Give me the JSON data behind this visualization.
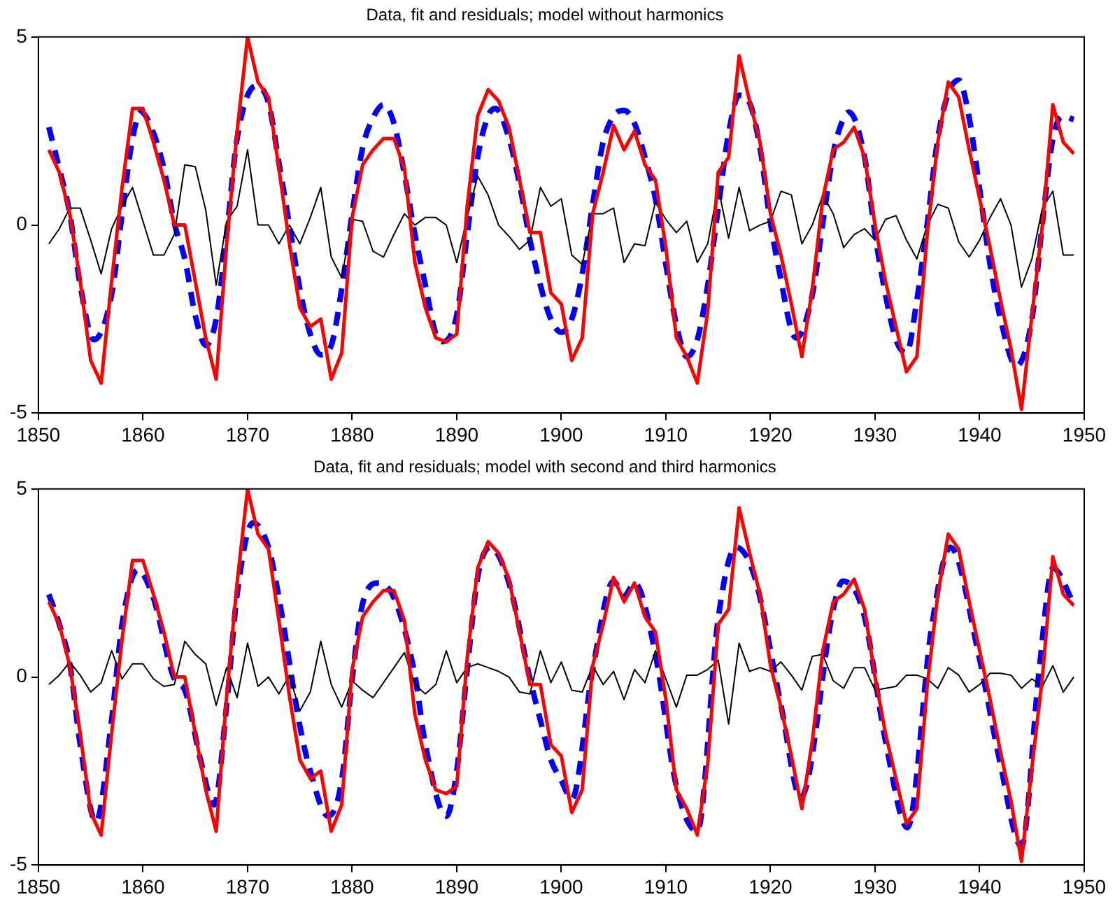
{
  "chart_data": [
    {
      "type": "line",
      "title": "Data, fit and residuals; model without harmonics",
      "xlim": [
        1850,
        1950
      ],
      "xticks": [
        1850,
        1860,
        1870,
        1880,
        1890,
        1900,
        1910,
        1920,
        1930,
        1940,
        1950
      ],
      "ylim": [
        -5,
        5
      ],
      "yticks": [
        -5,
        0,
        5
      ],
      "grid": false,
      "legend": false,
      "marker": "none",
      "x": [
        1851,
        1852,
        1853,
        1854,
        1855,
        1856,
        1857,
        1858,
        1859,
        1860,
        1861,
        1862,
        1863,
        1864,
        1865,
        1866,
        1867,
        1868,
        1869,
        1870,
        1871,
        1872,
        1873,
        1874,
        1875,
        1876,
        1877,
        1878,
        1879,
        1880,
        1881,
        1882,
        1883,
        1884,
        1885,
        1886,
        1887,
        1888,
        1889,
        1890,
        1891,
        1892,
        1893,
        1894,
        1895,
        1896,
        1897,
        1898,
        1899,
        1900,
        1901,
        1902,
        1903,
        1904,
        1905,
        1906,
        1907,
        1908,
        1909,
        1910,
        1911,
        1912,
        1913,
        1914,
        1915,
        1916,
        1917,
        1918,
        1919,
        1920,
        1921,
        1922,
        1923,
        1924,
        1925,
        1926,
        1927,
        1928,
        1929,
        1930,
        1931,
        1932,
        1933,
        1934,
        1935,
        1936,
        1937,
        1938,
        1939,
        1940,
        1941,
        1942,
        1943,
        1944,
        1945,
        1946,
        1947,
        1948,
        1949
      ],
      "series": [
        {
          "type": "line",
          "color": "#ff0000",
          "line_style": "solid",
          "values": [
            2.0,
            1.4,
            0.3,
            -1.5,
            -3.6,
            -4.2,
            -1.5,
            1.0,
            3.1,
            3.1,
            2.2,
            1.2,
            0.0,
            0.0,
            -1.5,
            -3.0,
            -4.1,
            -0.5,
            2.5,
            5.0,
            3.8,
            3.4,
            1.5,
            -0.5,
            -2.2,
            -2.7,
            -2.5,
            -4.1,
            -3.4,
            0.2,
            1.6,
            2.0,
            2.3,
            2.3,
            1.5,
            -1.0,
            -2.2,
            -3.0,
            -3.1,
            -2.9,
            0.5,
            2.9,
            3.6,
            3.3,
            2.6,
            1.2,
            -0.2,
            -0.2,
            -1.8,
            -2.1,
            -3.6,
            -3.0,
            0.3,
            1.4,
            2.65,
            2.0,
            2.5,
            1.6,
            1.2,
            -0.6,
            -3.0,
            -3.5,
            -4.2,
            -2.3,
            1.4,
            1.8,
            4.5,
            3.3,
            2.2,
            0.3,
            -0.8,
            -2.1,
            -3.5,
            -1.7,
            0.7,
            2.0,
            2.2,
            2.6,
            1.8,
            0.0,
            -1.5,
            -2.7,
            -3.9,
            -3.5,
            -0.2,
            2.2,
            3.8,
            3.4,
            2.0,
            0.7,
            -0.6,
            -2.0,
            -3.3,
            -4.9,
            -2.4,
            0.0,
            3.2,
            2.2,
            1.9
          ]
        },
        {
          "type": "line",
          "color": "#0000ff",
          "line_style": "dashed",
          "x": [
            1851,
            1852,
            1853,
            1854,
            1855.3,
            1857,
            1858,
            1859,
            1859.8,
            1861,
            1862,
            1863,
            1864,
            1865,
            1866,
            1867,
            1868,
            1869,
            1870.8,
            1872,
            1873,
            1874,
            1875,
            1876,
            1877,
            1878,
            1879,
            1880,
            1881,
            1882,
            1883,
            1884,
            1885,
            1886,
            1887,
            1888,
            1888.7,
            1890,
            1891,
            1892,
            1893,
            1893.7,
            1895,
            1896,
            1897,
            1898,
            1899,
            1900,
            1901,
            1902,
            1903,
            1904,
            1905,
            1906,
            1907,
            1908,
            1909,
            1910,
            1911,
            1912,
            1913,
            1914,
            1915,
            1916,
            1917,
            1918,
            1919,
            1920,
            1921,
            1922,
            1922.5,
            1924,
            1925,
            1926,
            1927,
            1927.5,
            1929,
            1930,
            1931,
            1932,
            1933,
            1934,
            1935,
            1936,
            1937,
            1938,
            1939,
            1940,
            1941,
            1942,
            1943.5,
            1945,
            1946,
            1947,
            1948,
            1949
          ],
          "values": [
            2.6,
            1.5,
            0.3,
            -1.6,
            -3.05,
            -1.85,
            0.3,
            2.3,
            3.0,
            2.45,
            1.5,
            0.05,
            -0.9,
            -2.4,
            -3.2,
            -2.5,
            -0.25,
            2.3,
            3.7,
            3.25,
            1.65,
            0.0,
            -1.7,
            -2.9,
            -3.45,
            -3.2,
            -1.7,
            0.3,
            2.05,
            2.85,
            3.2,
            2.7,
            1.35,
            -0.25,
            -1.6,
            -2.9,
            -3.1,
            -2.4,
            -0.25,
            1.8,
            2.9,
            3.1,
            2.3,
            1.1,
            -0.4,
            -1.6,
            -2.5,
            -2.85,
            -2.5,
            -1.3,
            0.55,
            2.2,
            2.9,
            3.05,
            2.7,
            1.8,
            0.7,
            -1.05,
            -2.65,
            -3.5,
            -3.05,
            -1.6,
            0.45,
            2.45,
            3.45,
            3.25,
            2.05,
            0.05,
            -1.45,
            -2.8,
            -3.0,
            -1.85,
            0.05,
            1.9,
            2.85,
            3.0,
            1.8,
            -0.25,
            -1.85,
            -3.05,
            -3.4,
            -2.0,
            0.05,
            2.3,
            3.5,
            3.85,
            2.85,
            0.95,
            -1.05,
            -2.5,
            -3.75,
            -2.5,
            0.05,
            2.3,
            2.9,
            2.8
          ]
        },
        {
          "type": "line",
          "color": "#000000",
          "line_style": "solid",
          "values": [
            -0.5,
            -0.1,
            0.45,
            0.45,
            -0.4,
            -1.3,
            -0.1,
            0.5,
            1.0,
            0.1,
            -0.8,
            -0.8,
            -0.25,
            1.6,
            1.55,
            0.4,
            -1.6,
            0.1,
            0.5,
            2.0,
            0.0,
            0.0,
            -0.5,
            0.0,
            -0.5,
            0.2,
            1.0,
            -0.85,
            -1.4,
            0.15,
            0.1,
            -0.7,
            -0.85,
            -0.25,
            0.3,
            0.0,
            0.2,
            0.2,
            0.0,
            -1.0,
            0.2,
            1.3,
            0.8,
            0.0,
            -0.3,
            -0.65,
            -0.4,
            1.0,
            0.5,
            0.7,
            -0.8,
            -1.05,
            0.3,
            0.3,
            0.45,
            -1.0,
            -0.5,
            -0.55,
            0.6,
            0.15,
            -0.2,
            0.1,
            -1.0,
            -0.5,
            1.0,
            -0.35,
            1.0,
            -0.15,
            0.0,
            0.1,
            0.9,
            0.8,
            -0.5,
            0.0,
            0.8,
            0.3,
            -0.6,
            -0.25,
            -0.1,
            -0.4,
            0.15,
            0.25,
            -0.4,
            -0.9,
            0.0,
            0.55,
            0.45,
            -0.45,
            -0.85,
            -0.4,
            0.2,
            0.7,
            0.0,
            -1.65,
            -0.9,
            0.45,
            0.9,
            -0.8,
            -0.8
          ]
        }
      ]
    },
    {
      "type": "line",
      "title": "Data, fit and residuals; model with second and third harmonics",
      "xlim": [
        1850,
        1950
      ],
      "xticks": [
        1850,
        1860,
        1870,
        1880,
        1890,
        1900,
        1910,
        1920,
        1930,
        1940,
        1950
      ],
      "ylim": [
        -5,
        5
      ],
      "yticks": [
        -5,
        0,
        5
      ],
      "grid": false,
      "legend": false,
      "marker": "none",
      "x": [
        1851,
        1852,
        1853,
        1854,
        1855,
        1856,
        1857,
        1858,
        1859,
        1860,
        1861,
        1862,
        1863,
        1864,
        1865,
        1866,
        1867,
        1868,
        1869,
        1870,
        1871,
        1872,
        1873,
        1874,
        1875,
        1876,
        1877,
        1878,
        1879,
        1880,
        1881,
        1882,
        1883,
        1884,
        1885,
        1886,
        1887,
        1888,
        1889,
        1890,
        1891,
        1892,
        1893,
        1894,
        1895,
        1896,
        1897,
        1898,
        1899,
        1900,
        1901,
        1902,
        1903,
        1904,
        1905,
        1906,
        1907,
        1908,
        1909,
        1910,
        1911,
        1912,
        1913,
        1914,
        1915,
        1916,
        1917,
        1918,
        1919,
        1920,
        1921,
        1922,
        1923,
        1924,
        1925,
        1926,
        1927,
        1928,
        1929,
        1930,
        1931,
        1932,
        1933,
        1934,
        1935,
        1936,
        1937,
        1938,
        1939,
        1940,
        1941,
        1942,
        1943,
        1944,
        1945,
        1946,
        1947,
        1948,
        1949
      ],
      "series": [
        {
          "type": "line",
          "color": "#ff0000",
          "line_style": "solid",
          "values": [
            2.0,
            1.4,
            0.3,
            -1.5,
            -3.6,
            -4.2,
            -1.5,
            1.0,
            3.1,
            3.1,
            2.2,
            1.2,
            0.0,
            0.0,
            -1.5,
            -3.0,
            -4.1,
            -0.5,
            2.5,
            5.0,
            3.8,
            3.4,
            1.5,
            -0.5,
            -2.2,
            -2.7,
            -2.5,
            -4.1,
            -3.4,
            0.2,
            1.6,
            2.0,
            2.3,
            2.3,
            1.5,
            -1.0,
            -2.2,
            -3.0,
            -3.1,
            -2.9,
            0.5,
            2.9,
            3.6,
            3.3,
            2.6,
            1.2,
            -0.2,
            -0.2,
            -1.8,
            -2.1,
            -3.6,
            -3.0,
            0.3,
            1.4,
            2.65,
            2.0,
            2.5,
            1.6,
            1.2,
            -0.6,
            -3.0,
            -3.5,
            -4.2,
            -2.3,
            1.4,
            1.8,
            4.5,
            3.3,
            2.2,
            0.3,
            -0.8,
            -2.1,
            -3.5,
            -1.7,
            0.7,
            2.0,
            2.2,
            2.6,
            1.8,
            0.0,
            -1.5,
            -2.7,
            -3.9,
            -3.5,
            -0.2,
            2.2,
            3.8,
            3.4,
            2.0,
            0.7,
            -0.6,
            -2.0,
            -3.3,
            -4.9,
            -2.4,
            0.0,
            3.2,
            2.2,
            1.9
          ]
        },
        {
          "type": "line",
          "color": "#0000ff",
          "line_style": "dashed",
          "x": [
            1851,
            1852,
            1853,
            1854,
            1855.5,
            1857,
            1858,
            1859.5,
            1861,
            1863,
            1864,
            1865.5,
            1866.8,
            1868,
            1869,
            1870.5,
            1872,
            1873,
            1875,
            1876,
            1877.7,
            1879,
            1880,
            1881,
            1882.5,
            1884,
            1886,
            1887,
            1889,
            1890,
            1891,
            1892,
            1893.2,
            1895,
            1897,
            1898,
            1899,
            1900,
            1901,
            1903,
            1905,
            1906,
            1907,
            1909,
            1911,
            1913,
            1915,
            1916.7,
            1918.5,
            1921,
            1922.9,
            1926,
            1926.9,
            1928.9,
            1931,
            1933.1,
            1935.4,
            1937.2,
            1939.9,
            1941.9,
            1944,
            1945.7,
            1947,
            1949
          ],
          "values": [
            2.2,
            1.4,
            0.35,
            -1.8,
            -3.85,
            -1.15,
            1.4,
            2.85,
            2.1,
            -0.05,
            -0.35,
            -2.2,
            -3.4,
            -0.75,
            2.2,
            4.1,
            3.45,
            2.1,
            -1.3,
            -2.5,
            -3.7,
            -2.75,
            -0.05,
            1.95,
            2.5,
            2.1,
            0.05,
            -1.8,
            -3.7,
            -2.5,
            0.2,
            2.65,
            3.45,
            2.5,
            -0.05,
            -1.15,
            -2.2,
            -2.75,
            -3.25,
            0.2,
            2.55,
            2.15,
            2.5,
            0.6,
            -2.9,
            -4.1,
            1.55,
            3.45,
            2.65,
            -0.75,
            -3.2,
            1.8,
            2.55,
            1.7,
            -1.7,
            -4.0,
            1.3,
            3.45,
            0.6,
            -2.2,
            -4.5,
            0.2,
            2.9,
            1.95
          ]
        },
        {
          "type": "line",
          "color": "#000000",
          "line_style": "solid",
          "values": [
            -0.2,
            0.05,
            0.4,
            0.05,
            -0.4,
            -0.15,
            0.7,
            -0.05,
            0.35,
            0.35,
            -0.05,
            -0.25,
            -0.2,
            0.95,
            0.6,
            0.35,
            -0.75,
            0.25,
            -0.55,
            0.9,
            -0.25,
            0.0,
            -0.45,
            0.05,
            -0.9,
            -0.4,
            0.95,
            -0.2,
            -0.8,
            -0.1,
            -0.35,
            -0.55,
            -0.15,
            0.25,
            0.65,
            -0.2,
            -0.45,
            -0.2,
            0.7,
            -0.15,
            0.25,
            0.35,
            0.25,
            0.15,
            0.0,
            -0.4,
            -0.45,
            0.7,
            -0.15,
            0.4,
            -0.35,
            -0.4,
            0.3,
            -0.2,
            0.15,
            -0.6,
            0.2,
            -0.15,
            0.7,
            -0.05,
            -0.8,
            0.05,
            0.05,
            0.2,
            0.45,
            -1.25,
            0.9,
            0.15,
            0.25,
            0.15,
            0.4,
            0.05,
            -0.35,
            0.55,
            0.6,
            -0.1,
            -0.3,
            0.25,
            0.25,
            -0.35,
            -0.3,
            -0.25,
            0.05,
            0.05,
            -0.05,
            -0.3,
            0.25,
            0.05,
            -0.4,
            -0.2,
            0.1,
            0.1,
            0.05,
            -0.3,
            -0.05,
            -0.25,
            0.3,
            -0.4,
            0.0
          ]
        }
      ]
    }
  ]
}
